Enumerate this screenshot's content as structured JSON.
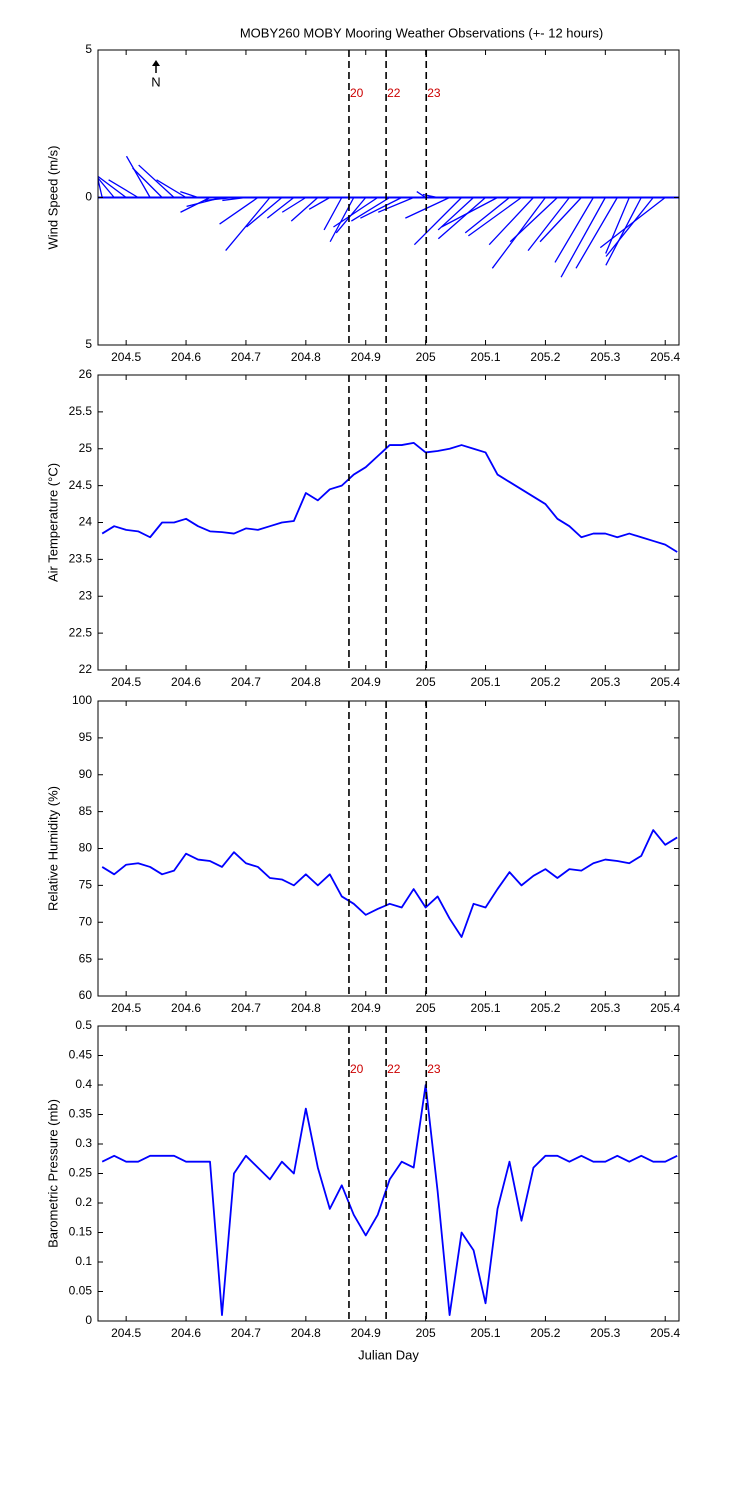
{
  "chart_data": [
    {
      "type": "stick",
      "title": "MOBY260 MOBY Mooring Weather Observations (+- 12 hours)",
      "y_label": "Wind Speed (m/s)",
      "annotation": "N",
      "color": "#0000ff",
      "xlim": [
        204.453,
        205.423
      ],
      "xticks": [
        204.5,
        204.6,
        204.7,
        204.8,
        204.9,
        205,
        205.1,
        205.2,
        205.3,
        205.4
      ],
      "ylim": [
        -5,
        5
      ],
      "yticks": [
        {
          "value": -5,
          "label": "5"
        },
        0,
        5
      ],
      "vlines": [
        204.872,
        204.934,
        205.001
      ],
      "vline_labels": [
        "20",
        "22",
        "23"
      ],
      "vline_label_color": "#cc0000",
      "x": [
        204.46,
        204.48,
        204.5,
        204.52,
        204.54,
        204.56,
        204.58,
        204.6,
        204.62,
        204.64,
        204.66,
        204.68,
        204.7,
        204.72,
        204.74,
        204.76,
        204.78,
        204.8,
        204.82,
        204.84,
        204.86,
        204.88,
        204.9,
        204.92,
        204.94,
        204.96,
        204.98,
        205,
        205.02,
        205.04,
        205.06,
        205.08,
        205.1,
        205.12,
        205.14,
        205.16,
        205.18,
        205.2,
        205.22,
        205.24,
        205.26,
        205.28,
        205.3,
        205.32,
        205.34,
        205.36,
        205.38,
        205.4
      ],
      "u": [
        -0.3,
        -1.0,
        -1.2,
        -1.0,
        -0.8,
        -1.0,
        -1.2,
        -1.0,
        -0.6,
        -1.0,
        -1.2,
        -1.0,
        -0.8,
        -1.3,
        -1.5,
        -1.2,
        -0.9,
        -0.8,
        -0.9,
        -0.7,
        -0.6,
        -0.8,
        -1.0,
        -1.5,
        -1.3,
        -1.4,
        -1.2,
        -0.3,
        -0.5,
        -1.5,
        -1.6,
        -1.2,
        -1.6,
        -1.9,
        -1.5,
        -1.8,
        -1.5,
        -1.8,
        -1.6,
        -1.4,
        -1.4,
        -1.3,
        -1.5,
        -1.4,
        -0.8,
        -1.2,
        -1.6,
        -2.2
      ],
      "v": [
        1.3,
        1.2,
        0.9,
        0.6,
        1.4,
        1.0,
        1.1,
        0.6,
        0.2,
        -0.5,
        -0.3,
        -0.1,
        -0.1,
        -0.9,
        -1.8,
        -1.0,
        -0.7,
        -0.5,
        -0.8,
        -0.4,
        -1.1,
        -1.5,
        -1.2,
        -1.0,
        -0.8,
        -0.7,
        -0.5,
        0.2,
        0.1,
        -0.7,
        -1.6,
        -1.1,
        -1.4,
        -1.0,
        -1.2,
        -1.3,
        -1.6,
        -2.4,
        -1.5,
        -1.8,
        -1.5,
        -2.2,
        -2.7,
        -2.4,
        -1.9,
        -2.3,
        -2.0,
        -1.7
      ]
    },
    {
      "type": "line",
      "y_label": "Air Temperature (°C)",
      "color": "#0000ff",
      "xlim": [
        204.453,
        205.423
      ],
      "xticks": [
        204.5,
        204.6,
        204.7,
        204.8,
        204.9,
        205,
        205.1,
        205.2,
        205.3,
        205.4
      ],
      "ylim": [
        22,
        26
      ],
      "yticks": [
        22,
        22.5,
        23,
        23.5,
        24,
        24.5,
        25,
        25.5,
        26
      ],
      "vlines": [
        204.872,
        204.934,
        205.001
      ],
      "x": [
        204.46,
        204.48,
        204.5,
        204.52,
        204.54,
        204.56,
        204.58,
        204.6,
        204.62,
        204.64,
        204.66,
        204.68,
        204.7,
        204.72,
        204.74,
        204.76,
        204.78,
        204.8,
        204.82,
        204.84,
        204.86,
        204.88,
        204.9,
        204.92,
        204.94,
        204.96,
        204.98,
        205,
        205.02,
        205.04,
        205.06,
        205.08,
        205.1,
        205.12,
        205.14,
        205.16,
        205.18,
        205.2,
        205.22,
        205.24,
        205.26,
        205.28,
        205.3,
        205.32,
        205.34,
        205.36,
        205.38,
        205.4,
        205.42
      ],
      "values": [
        23.85,
        23.95,
        23.9,
        23.88,
        23.8,
        24.0,
        24.0,
        24.05,
        23.95,
        23.88,
        23.87,
        23.85,
        23.92,
        23.9,
        23.95,
        24.0,
        24.02,
        24.4,
        24.3,
        24.45,
        24.5,
        24.65,
        24.75,
        24.9,
        25.05,
        25.05,
        25.08,
        24.95,
        24.97,
        25.0,
        25.05,
        25.0,
        24.95,
        24.65,
        24.55,
        24.45,
        24.35,
        24.25,
        24.05,
        23.95,
        23.8,
        23.85,
        23.85,
        23.8,
        23.85,
        23.8,
        23.75,
        23.7,
        23.6
      ]
    },
    {
      "type": "line",
      "y_label": "Relative Humidity (%)",
      "color": "#0000ff",
      "xlim": [
        204.453,
        205.423
      ],
      "xticks": [
        204.5,
        204.6,
        204.7,
        204.8,
        204.9,
        205,
        205.1,
        205.2,
        205.3,
        205.4
      ],
      "ylim": [
        60,
        100
      ],
      "yticks": [
        60,
        65,
        70,
        75,
        80,
        85,
        90,
        95,
        100
      ],
      "vlines": [
        204.872,
        204.934,
        205.001
      ],
      "x": [
        204.46,
        204.48,
        204.5,
        204.52,
        204.54,
        204.56,
        204.58,
        204.6,
        204.62,
        204.64,
        204.66,
        204.68,
        204.7,
        204.72,
        204.74,
        204.76,
        204.78,
        204.8,
        204.82,
        204.84,
        204.86,
        204.88,
        204.9,
        204.92,
        204.94,
        204.96,
        204.98,
        205,
        205.02,
        205.04,
        205.06,
        205.08,
        205.1,
        205.12,
        205.14,
        205.16,
        205.18,
        205.2,
        205.22,
        205.24,
        205.26,
        205.28,
        205.3,
        205.32,
        205.34,
        205.36,
        205.38,
        205.4,
        205.42
      ],
      "values": [
        77.5,
        76.5,
        77.8,
        78,
        77.5,
        76.5,
        77,
        79.3,
        78.5,
        78.3,
        77.5,
        79.5,
        78,
        77.5,
        76,
        75.8,
        75,
        76.5,
        75,
        76.5,
        73.5,
        72.5,
        71,
        71.8,
        72.5,
        72,
        74.5,
        72,
        73.5,
        70.5,
        68,
        72.5,
        72,
        74.5,
        76.8,
        75,
        76.3,
        77.2,
        76,
        77.2,
        77,
        78,
        78.5,
        78.3,
        78,
        79,
        82.5,
        80.5,
        81.5
      ]
    },
    {
      "type": "line",
      "y_label": "Barometric Pressure (mb)",
      "x_label": "Julian Day",
      "color": "#0000ff",
      "xlim": [
        204.453,
        205.423
      ],
      "xticks": [
        204.5,
        204.6,
        204.7,
        204.8,
        204.9,
        205,
        205.1,
        205.2,
        205.3,
        205.4
      ],
      "ylim": [
        0,
        0.5
      ],
      "yticks": [
        0,
        0.05,
        0.1,
        0.15,
        0.2,
        0.25,
        0.3,
        0.35,
        0.4,
        0.45,
        0.5
      ],
      "vlines": [
        204.872,
        204.934,
        205.001
      ],
      "vline_labels": [
        "20",
        "22",
        "23"
      ],
      "vline_label_color": "#cc0000",
      "x": [
        204.46,
        204.48,
        204.5,
        204.52,
        204.54,
        204.56,
        204.58,
        204.6,
        204.62,
        204.64,
        204.66,
        204.68,
        204.7,
        204.72,
        204.74,
        204.76,
        204.78,
        204.8,
        204.82,
        204.84,
        204.86,
        204.88,
        204.9,
        204.92,
        204.94,
        204.96,
        204.98,
        205,
        205.02,
        205.04,
        205.06,
        205.08,
        205.1,
        205.12,
        205.14,
        205.16,
        205.18,
        205.2,
        205.22,
        205.24,
        205.26,
        205.28,
        205.3,
        205.32,
        205.34,
        205.36,
        205.38,
        205.4,
        205.42
      ],
      "values": [
        0.27,
        0.28,
        0.27,
        0.27,
        0.28,
        0.28,
        0.28,
        0.27,
        0.27,
        0.27,
        0.01,
        0.25,
        0.28,
        0.26,
        0.24,
        0.27,
        0.25,
        0.36,
        0.26,
        0.19,
        0.23,
        0.18,
        0.145,
        0.18,
        0.24,
        0.27,
        0.26,
        0.4,
        0.22,
        0.01,
        0.15,
        0.12,
        0.03,
        0.19,
        0.27,
        0.17,
        0.26,
        0.28,
        0.28,
        0.27,
        0.28,
        0.27,
        0.27,
        0.28,
        0.27,
        0.28,
        0.27,
        0.27,
        0.28
      ]
    }
  ]
}
